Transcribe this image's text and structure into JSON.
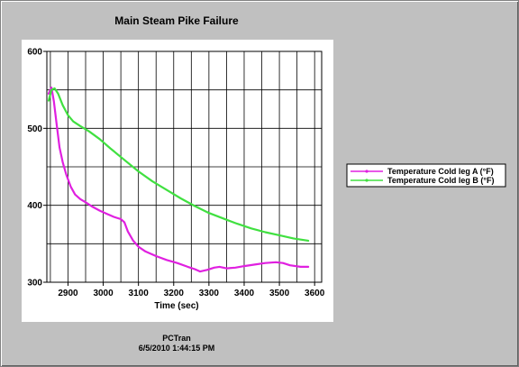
{
  "chart_data": {
    "type": "line",
    "title": "Main Steam Pike Failure",
    "xlabel": "Time (sec)",
    "ylabel": "",
    "xlim": [
      2840,
      3620
    ],
    "ylim": [
      300,
      600
    ],
    "x_ticks": [
      2900,
      3000,
      3100,
      3200,
      3300,
      3400,
      3500,
      3600
    ],
    "y_ticks": [
      300,
      400,
      500,
      600
    ],
    "grid": true,
    "legend_position": "right",
    "series": [
      {
        "name": "Temperature Cold leg A (°F)",
        "color": "#e020e0",
        "points": [
          [
            2845,
            545
          ],
          [
            2853,
            553
          ],
          [
            2860,
            535
          ],
          [
            2868,
            505
          ],
          [
            2876,
            475
          ],
          [
            2885,
            456
          ],
          [
            2895,
            440
          ],
          [
            2908,
            424
          ],
          [
            2920,
            414
          ],
          [
            2935,
            408
          ],
          [
            2950,
            404
          ],
          [
            2970,
            398
          ],
          [
            2990,
            393
          ],
          [
            3010,
            389
          ],
          [
            3030,
            385
          ],
          [
            3050,
            382
          ],
          [
            3060,
            378
          ],
          [
            3070,
            366
          ],
          [
            3085,
            354
          ],
          [
            3100,
            346
          ],
          [
            3120,
            340
          ],
          [
            3150,
            334
          ],
          [
            3180,
            329
          ],
          [
            3210,
            325
          ],
          [
            3240,
            320
          ],
          [
            3260,
            317
          ],
          [
            3275,
            314
          ],
          [
            3295,
            316
          ],
          [
            3315,
            319
          ],
          [
            3330,
            320
          ],
          [
            3350,
            318
          ],
          [
            3375,
            319
          ],
          [
            3400,
            321
          ],
          [
            3430,
            323
          ],
          [
            3460,
            325
          ],
          [
            3490,
            326
          ],
          [
            3510,
            325
          ],
          [
            3530,
            322
          ],
          [
            3560,
            320
          ],
          [
            3582,
            320
          ]
        ]
      },
      {
        "name": "Temperature Cold leg B (°F)",
        "color": "#40e040",
        "points": [
          [
            2845,
            536
          ],
          [
            2853,
            550
          ],
          [
            2862,
            552
          ],
          [
            2872,
            545
          ],
          [
            2885,
            530
          ],
          [
            2900,
            517
          ],
          [
            2915,
            509
          ],
          [
            2935,
            503
          ],
          [
            2960,
            496
          ],
          [
            2990,
            486
          ],
          [
            3020,
            474
          ],
          [
            3060,
            459
          ],
          [
            3100,
            444
          ],
          [
            3140,
            431
          ],
          [
            3180,
            420
          ],
          [
            3220,
            409
          ],
          [
            3260,
            399
          ],
          [
            3300,
            390
          ],
          [
            3340,
            383
          ],
          [
            3380,
            376
          ],
          [
            3420,
            370
          ],
          [
            3460,
            365
          ],
          [
            3500,
            361
          ],
          [
            3540,
            357
          ],
          [
            3582,
            354
          ]
        ]
      }
    ]
  },
  "footer": {
    "app": "PCTran",
    "timestamp": "6/5/2010 1:44:15 PM"
  }
}
